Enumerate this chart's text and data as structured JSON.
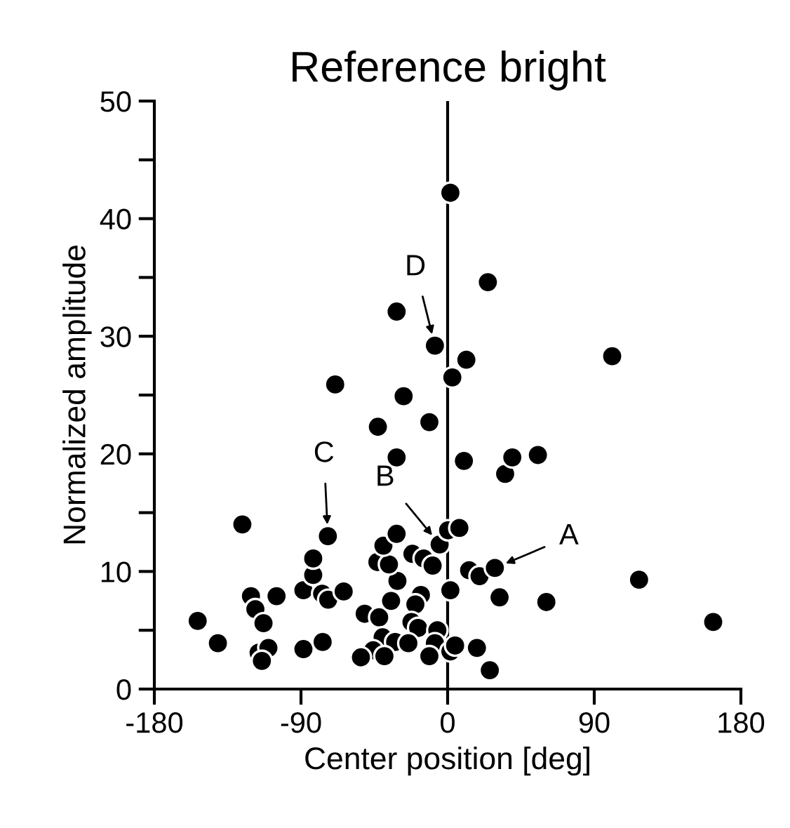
{
  "chart_data": {
    "type": "scatter",
    "title": "Reference bright",
    "xlabel": "Center position [deg]",
    "ylabel": "Normalized amplitude",
    "xlim": [
      -180,
      180
    ],
    "xticks": [
      -180,
      -90,
      0,
      90,
      180
    ],
    "ylim": [
      0,
      50
    ],
    "yticks": [
      0,
      {
        "value": 5,
        "label": null
      },
      10,
      {
        "value": 15,
        "label": null
      },
      20,
      {
        "value": 25,
        "label": null
      },
      30,
      {
        "value": 35,
        "label": null
      },
      40,
      {
        "value": 45,
        "label": null
      },
      50
    ],
    "grid": false,
    "marker": "circle",
    "ref_lines": [
      {
        "axis": "x",
        "value": 0,
        "color": "#000000"
      }
    ],
    "annotations": [
      {
        "text": "A",
        "x": 29,
        "y": 10.3
      },
      {
        "text": "B",
        "x": -4.9,
        "y": 12.3
      },
      {
        "text": "C",
        "x": -73.5,
        "y": 13.0
      },
      {
        "text": "D",
        "x": -7.8,
        "y": 29.2
      }
    ],
    "series": [
      {
        "color": "#000000",
        "x": [
          -126,
          -153.4,
          -141,
          -120.7,
          -118,
          -113,
          -105,
          -116,
          -110,
          -114,
          -88.5,
          -82.5,
          -82.5,
          -73.5,
          -77,
          -73.3,
          -63.8,
          -88.5,
          -76.7,
          -50.9,
          -42,
          -34.7,
          -30.8,
          -43.1,
          -36,
          -39.4,
          -31.3,
          -21.6,
          -14.7,
          -9.2,
          -4.9,
          0.3,
          7.2,
          -16.4,
          -19.8,
          -22.2,
          -18.1,
          1.7,
          -39.9,
          -32.2,
          -24.1,
          -45.7,
          -38.8,
          -53.2,
          -6.3,
          -7.8,
          -11.2,
          1.7,
          35.3,
          13.2,
          19.6,
          29,
          31.9,
          60.6,
          117.5,
          163,
          4.6,
          18,
          25.9,
          1.7,
          24.7,
          -31.3,
          -7.8,
          11.5,
          2.9,
          101,
          -69,
          -27,
          -42.8,
          -11.2,
          -31.3,
          10,
          39.7,
          55.4
        ],
        "values": [
          14.0,
          5.8,
          3.9,
          7.9,
          6.8,
          5.6,
          7.9,
          3.1,
          3.5,
          2.4,
          8.4,
          9.7,
          11.1,
          13.0,
          8.1,
          7.6,
          8.3,
          3.4,
          4.0,
          6.4,
          6.1,
          7.5,
          9.2,
          10.8,
          10.6,
          12.2,
          13.2,
          11.5,
          11.1,
          10.5,
          12.3,
          13.5,
          13.7,
          8.0,
          7.2,
          5.7,
          5.2,
          8.4,
          4.4,
          4.0,
          3.9,
          3.3,
          2.8,
          2.7,
          5.0,
          3.9,
          2.8,
          3.2,
          18.3,
          10.1,
          9.6,
          10.3,
          7.8,
          7.4,
          9.3,
          5.7,
          3.7,
          3.5,
          1.6,
          42.2,
          34.6,
          32.1,
          29.2,
          28.0,
          26.5,
          28.3,
          25.9,
          24.9,
          22.3,
          22.7,
          19.7,
          19.4,
          19.7,
          19.9
        ]
      }
    ]
  }
}
